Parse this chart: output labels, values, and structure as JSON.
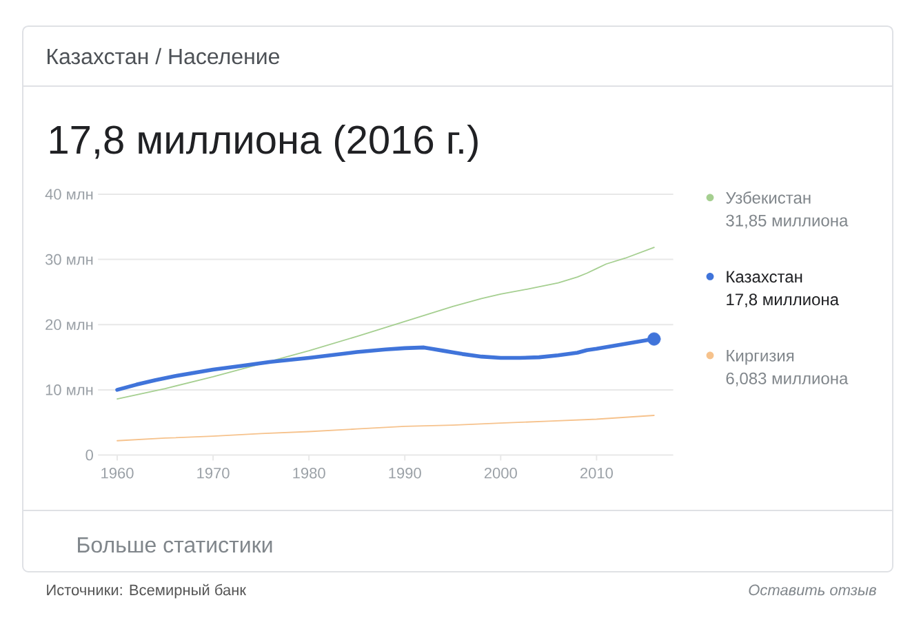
{
  "chart_data": {
    "type": "line",
    "title": "Казахстан / Население",
    "subtitle": "17,8 миллиона (2016 г.)",
    "series": [
      {
        "name": "Узбекистан",
        "color": "#a5cf90",
        "x": [
          1960,
          1965,
          1970,
          1975,
          1980,
          1985,
          1990,
          1995,
          1998,
          2000,
          2003,
          2006,
          2008,
          2009,
          2010,
          2011,
          2013,
          2016
        ],
        "values": [
          8.6,
          10.2,
          12.0,
          14.0,
          16.0,
          18.2,
          20.5,
          22.8,
          24.0,
          24.7,
          25.5,
          26.4,
          27.3,
          27.9,
          28.6,
          29.3,
          30.2,
          31.85
        ]
      },
      {
        "name": "Казахстан",
        "color": "#4074da",
        "x": [
          1960,
          1962,
          1964,
          1966,
          1968,
          1970,
          1973,
          1976,
          1980,
          1985,
          1988,
          1990,
          1992,
          1994,
          1996,
          1998,
          2000,
          2002,
          2004,
          2006,
          2008,
          2009,
          2010,
          2012,
          2014,
          2016
        ],
        "values": [
          10.0,
          10.8,
          11.5,
          12.1,
          12.6,
          13.1,
          13.7,
          14.3,
          14.9,
          15.8,
          16.2,
          16.4,
          16.5,
          16.0,
          15.5,
          15.1,
          14.9,
          14.9,
          15.0,
          15.3,
          15.7,
          16.1,
          16.3,
          16.8,
          17.3,
          17.8
        ]
      },
      {
        "name": "Киргизия",
        "color": "#f6c28c",
        "x": [
          1960,
          1965,
          1970,
          1975,
          1980,
          1985,
          1990,
          1995,
          2000,
          2005,
          2010,
          2016
        ],
        "values": [
          2.2,
          2.6,
          2.9,
          3.3,
          3.6,
          4.0,
          4.4,
          4.6,
          4.9,
          5.2,
          5.5,
          6.083
        ]
      },
      {
        "type": "scatter",
        "color": "#4074da",
        "marker": "circle",
        "x": [
          2016
        ],
        "values": [
          17.8
        ]
      }
    ],
    "xlim": [
      1958,
      2018
    ],
    "xticks": [
      1960,
      1970,
      1980,
      1990,
      2000,
      2010
    ],
    "ylim": [
      0,
      40
    ],
    "yticks": [
      0,
      {
        "value": 10,
        "label": "10 млн"
      },
      {
        "value": 20,
        "label": "20 млн"
      },
      {
        "value": 30,
        "label": "30 млн"
      },
      {
        "value": 40,
        "label": "40 млн"
      }
    ],
    "grid": "y",
    "legend": "right",
    "annotations": [
      "31,85 миллиона",
      "17,8 миллиона",
      "6,083 миллиона",
      "Больше статистики",
      "Источники: Всемирный банк",
      "Оставить отзыв"
    ]
  }
}
